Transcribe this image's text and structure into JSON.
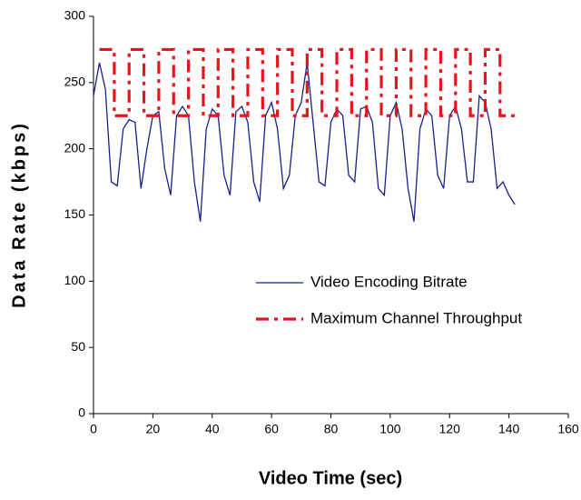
{
  "chart_data": {
    "type": "line",
    "xlabel": "Video Time (sec)",
    "ylabel": "Data Rate (kbps)",
    "xlim": [
      0,
      160
    ],
    "xticks": [
      0,
      20,
      40,
      60,
      80,
      100,
      120,
      140,
      160
    ],
    "ylim": [
      0,
      300
    ],
    "yticks": [
      0,
      50,
      100,
      150,
      200,
      250,
      300
    ],
    "grid": false,
    "legend": "right",
    "series": [
      {
        "name": "Video Encoding Bitrate",
        "color": "#1a1f8c",
        "dash": "solid",
        "x": [
          0,
          2,
          4,
          6,
          8,
          10,
          12,
          14,
          16,
          18,
          20,
          22,
          24,
          26,
          28,
          30,
          32,
          34,
          36,
          38,
          40,
          42,
          44,
          46,
          48,
          50,
          52,
          54,
          56,
          58,
          60,
          62,
          64,
          66,
          68,
          70,
          72,
          74,
          76,
          78,
          80,
          82,
          84,
          86,
          88,
          90,
          92,
          94,
          96,
          98,
          100,
          102,
          104,
          106,
          108,
          110,
          112,
          114,
          116,
          118,
          120,
          122,
          124,
          126,
          128,
          130,
          132,
          134,
          136,
          138,
          140,
          142
        ],
        "values": [
          240,
          265,
          245,
          175,
          172,
          215,
          222,
          220,
          170,
          200,
          225,
          228,
          185,
          165,
          225,
          232,
          225,
          175,
          145,
          215,
          230,
          225,
          180,
          165,
          228,
          232,
          220,
          175,
          160,
          225,
          235,
          215,
          170,
          180,
          225,
          235,
          265,
          220,
          175,
          172,
          220,
          230,
          225,
          180,
          175,
          230,
          232,
          220,
          170,
          165,
          225,
          235,
          215,
          170,
          145,
          215,
          230,
          225,
          180,
          170,
          225,
          232,
          215,
          175,
          175,
          240,
          235,
          215,
          170,
          175,
          165,
          158
        ]
      },
      {
        "name": "Maximum Channel Throughput",
        "color": "#e8141b",
        "dash": "dashdot",
        "x": [
          2,
          7,
          7,
          12,
          12,
          17,
          17,
          22,
          22,
          27,
          27,
          32,
          32,
          37,
          37,
          42,
          42,
          47,
          47,
          52,
          52,
          57,
          57,
          62,
          62,
          67,
          67,
          72,
          72,
          77,
          77,
          82,
          82,
          87,
          87,
          92,
          92,
          97,
          97,
          102,
          102,
          107,
          107,
          112,
          112,
          117,
          117,
          122,
          122,
          127,
          127,
          132,
          132,
          137,
          137,
          142
        ],
        "values": [
          275,
          275,
          225,
          225,
          275,
          275,
          225,
          225,
          275,
          275,
          225,
          225,
          275,
          275,
          225,
          225,
          275,
          275,
          225,
          225,
          275,
          275,
          225,
          225,
          275,
          275,
          225,
          225,
          275,
          275,
          225,
          225,
          275,
          275,
          225,
          225,
          275,
          275,
          225,
          225,
          275,
          275,
          225,
          225,
          275,
          275,
          225,
          225,
          275,
          275,
          225,
          225,
          275,
          275,
          225,
          225
        ]
      }
    ]
  }
}
